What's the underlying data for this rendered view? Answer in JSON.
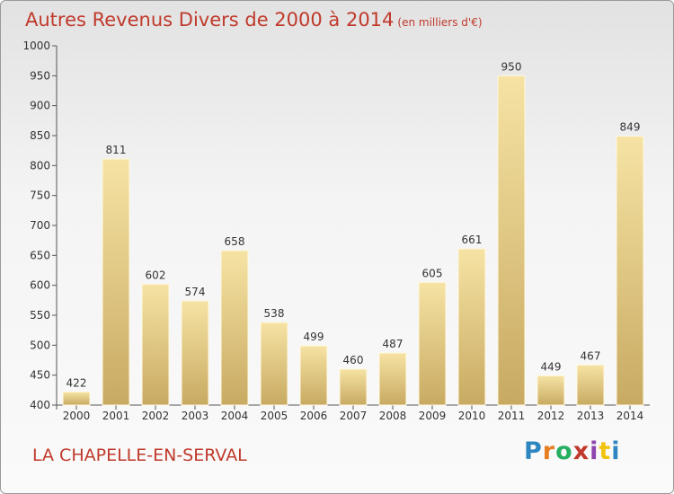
{
  "chart_data": {
    "type": "bar",
    "title": "Autres Revenus Divers de 2000 à 2014",
    "subtitle": "(en milliers d'€)",
    "categories": [
      "2000",
      "2001",
      "2002",
      "2003",
      "2004",
      "2005",
      "2006",
      "2007",
      "2008",
      "2009",
      "2010",
      "2011",
      "2012",
      "2013",
      "2014"
    ],
    "values": [
      422,
      811,
      602,
      574,
      658,
      538,
      499,
      460,
      487,
      605,
      661,
      950,
      449,
      467,
      849
    ],
    "ylim": [
      400,
      1000
    ],
    "yticks": [
      400,
      450,
      500,
      550,
      600,
      650,
      700,
      750,
      800,
      850,
      900,
      950,
      1000
    ],
    "grid": false,
    "bar_color_light": "#f6e3a4",
    "bar_color_dark": "#c8aa62",
    "text_color": "#c0392b"
  },
  "footer": {
    "location": "LA CHAPELLE-EN-SERVAL"
  },
  "logo": {
    "text": "Proxiti",
    "letter_colors": [
      "#2e86c1",
      "#e67e22",
      "#27ae60",
      "#c0392b",
      "#8e44ad",
      "#f1c40f",
      "#2e86c1"
    ]
  }
}
